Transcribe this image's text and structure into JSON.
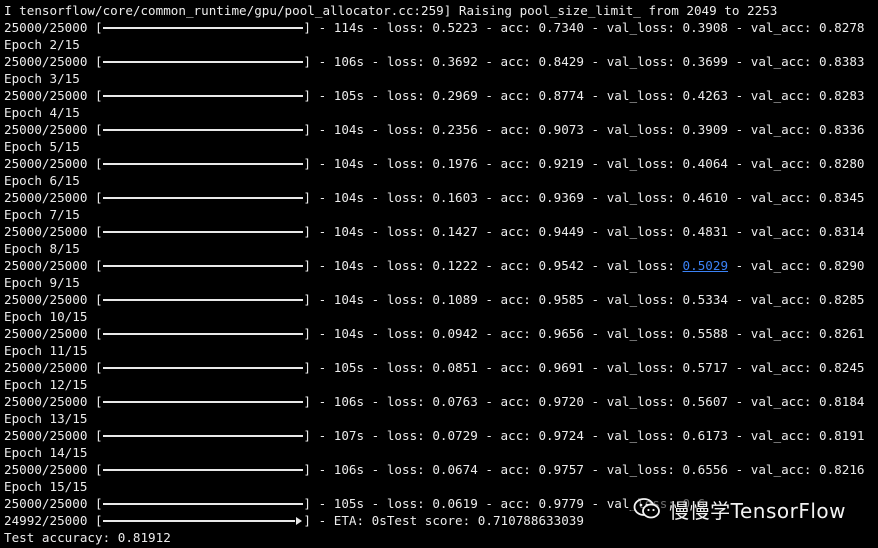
{
  "terminal": {
    "top_fragment": "  '  ' '    ' ''  '",
    "lines": [
      {
        "type": "text",
        "text": "I tensorflow/core/common_runtime/gpu/pool_allocator.cc:259] Raising pool_size_limit_ from 2049 to 2253"
      },
      {
        "type": "progress",
        "prefix": "25000/25000 ",
        "suffix": " - 114s - loss: 0.5223 - acc: 0.7340 - val_loss: 0.3908 - val_acc: 0.8278"
      },
      {
        "type": "text",
        "text": "Epoch 2/15"
      },
      {
        "type": "progress",
        "prefix": "25000/25000 ",
        "suffix": " - 106s - loss: 0.3692 - acc: 0.8429 - val_loss: 0.3699 - val_acc: 0.8383"
      },
      {
        "type": "text",
        "text": "Epoch 3/15"
      },
      {
        "type": "progress",
        "prefix": "25000/25000 ",
        "suffix": " - 105s - loss: 0.2969 - acc: 0.8774 - val_loss: 0.4263 - val_acc: 0.8283"
      },
      {
        "type": "text",
        "text": "Epoch 4/15"
      },
      {
        "type": "progress",
        "prefix": "25000/25000 ",
        "suffix": " - 104s - loss: 0.2356 - acc: 0.9073 - val_loss: 0.3909 - val_acc: 0.8336"
      },
      {
        "type": "text",
        "text": "Epoch 5/15"
      },
      {
        "type": "progress",
        "prefix": "25000/25000 ",
        "suffix": " - 104s - loss: 0.1976 - acc: 0.9219 - val_loss: 0.4064 - val_acc: 0.8280"
      },
      {
        "type": "text",
        "text": "Epoch 6/15"
      },
      {
        "type": "progress",
        "prefix": "25000/25000 ",
        "suffix": " - 104s - loss: 0.1603 - acc: 0.9369 - val_loss: 0.4610 - val_acc: 0.8345"
      },
      {
        "type": "text",
        "text": "Epoch 7/15"
      },
      {
        "type": "progress",
        "prefix": "25000/25000 ",
        "suffix": " - 104s - loss: 0.1427 - acc: 0.9449 - val_loss: 0.4831 - val_acc: 0.8314"
      },
      {
        "type": "text",
        "text": "Epoch 8/15"
      },
      {
        "type": "progress_highlight",
        "prefix": "25000/25000 ",
        "suffix_before": " - 104s - loss: 0.1222 - acc: 0.9542 - val_loss: ",
        "highlight": "0.5029",
        "suffix_after": " - val_acc: 0.8290"
      },
      {
        "type": "text",
        "text": "Epoch 9/15"
      },
      {
        "type": "progress",
        "prefix": "25000/25000 ",
        "suffix": " - 104s - loss: 0.1089 - acc: 0.9585 - val_loss: 0.5334 - val_acc: 0.8285"
      },
      {
        "type": "text",
        "text": "Epoch 10/15"
      },
      {
        "type": "progress",
        "prefix": "25000/25000 ",
        "suffix": " - 104s - loss: 0.0942 - acc: 0.9656 - val_loss: 0.5588 - val_acc: 0.8261"
      },
      {
        "type": "text",
        "text": "Epoch 11/15"
      },
      {
        "type": "progress",
        "prefix": "25000/25000 ",
        "suffix": " - 105s - loss: 0.0851 - acc: 0.9691 - val_loss: 0.5717 - val_acc: 0.8245"
      },
      {
        "type": "text",
        "text": "Epoch 12/15"
      },
      {
        "type": "progress",
        "prefix": "25000/25000 ",
        "suffix": " - 106s - loss: 0.0763 - acc: 0.9720 - val_loss: 0.5607 - val_acc: 0.8184"
      },
      {
        "type": "text",
        "text": "Epoch 13/15"
      },
      {
        "type": "progress",
        "prefix": "25000/25000 ",
        "suffix": " - 107s - loss: 0.0729 - acc: 0.9724 - val_loss: 0.6173 - val_acc: 0.8191"
      },
      {
        "type": "text",
        "text": "Epoch 14/15"
      },
      {
        "type": "progress",
        "prefix": "25000/25000 ",
        "suffix": " - 106s - loss: 0.0674 - acc: 0.9757 - val_loss: 0.6556 - val_acc: 0.8216"
      },
      {
        "type": "text",
        "text": "Epoch 15/15"
      },
      {
        "type": "progress",
        "prefix": "25000/25000 ",
        "suffix": " - 105s - loss: 0.0619 - acc: 0.9779 - val_loss: 0.6"
      },
      {
        "type": "progress_partial",
        "prefix": "24992/25000 ",
        "suffix": " - ETA: 0sTest score: 0.710788633039"
      },
      {
        "type": "text",
        "text": "Test accuracy: 0.81912"
      }
    ]
  },
  "watermark": {
    "text": "慢慢学TensorFlow",
    "icon": "wechat-icon"
  },
  "colors": {
    "background": "#000000",
    "foreground": "#ececec",
    "link": "#3b82f6"
  }
}
